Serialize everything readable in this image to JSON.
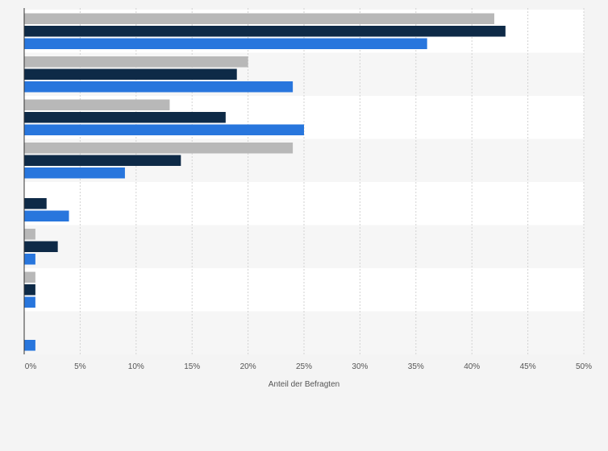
{
  "chart_data": {
    "type": "bar",
    "orientation": "horizontal",
    "categories": [
      "",
      "",
      "",
      "",
      "",
      "",
      "",
      ""
    ],
    "series": [
      {
        "color": "#b8b8b8",
        "values": [
          42,
          20,
          13,
          24,
          0,
          1,
          1,
          0
        ]
      },
      {
        "color": "#0e2a47",
        "values": [
          43,
          19,
          18,
          14,
          2,
          3,
          1,
          0
        ]
      },
      {
        "color": "#2876dd",
        "values": [
          36,
          24,
          25,
          9,
          4,
          1,
          1,
          1
        ]
      }
    ],
    "xlim": [
      0,
      50
    ],
    "xticks": [
      0,
      5,
      10,
      15,
      20,
      25,
      30,
      35,
      40,
      45,
      50
    ],
    "xtick_labels": [
      "0%",
      "5%",
      "10%",
      "15%",
      "20%",
      "25%",
      "30%",
      "35%",
      "40%",
      "45%",
      "50%"
    ],
    "xlabel": "Anteil der Befragten",
    "ylabel": "",
    "grid": "vertical dashed",
    "legend": "none"
  }
}
